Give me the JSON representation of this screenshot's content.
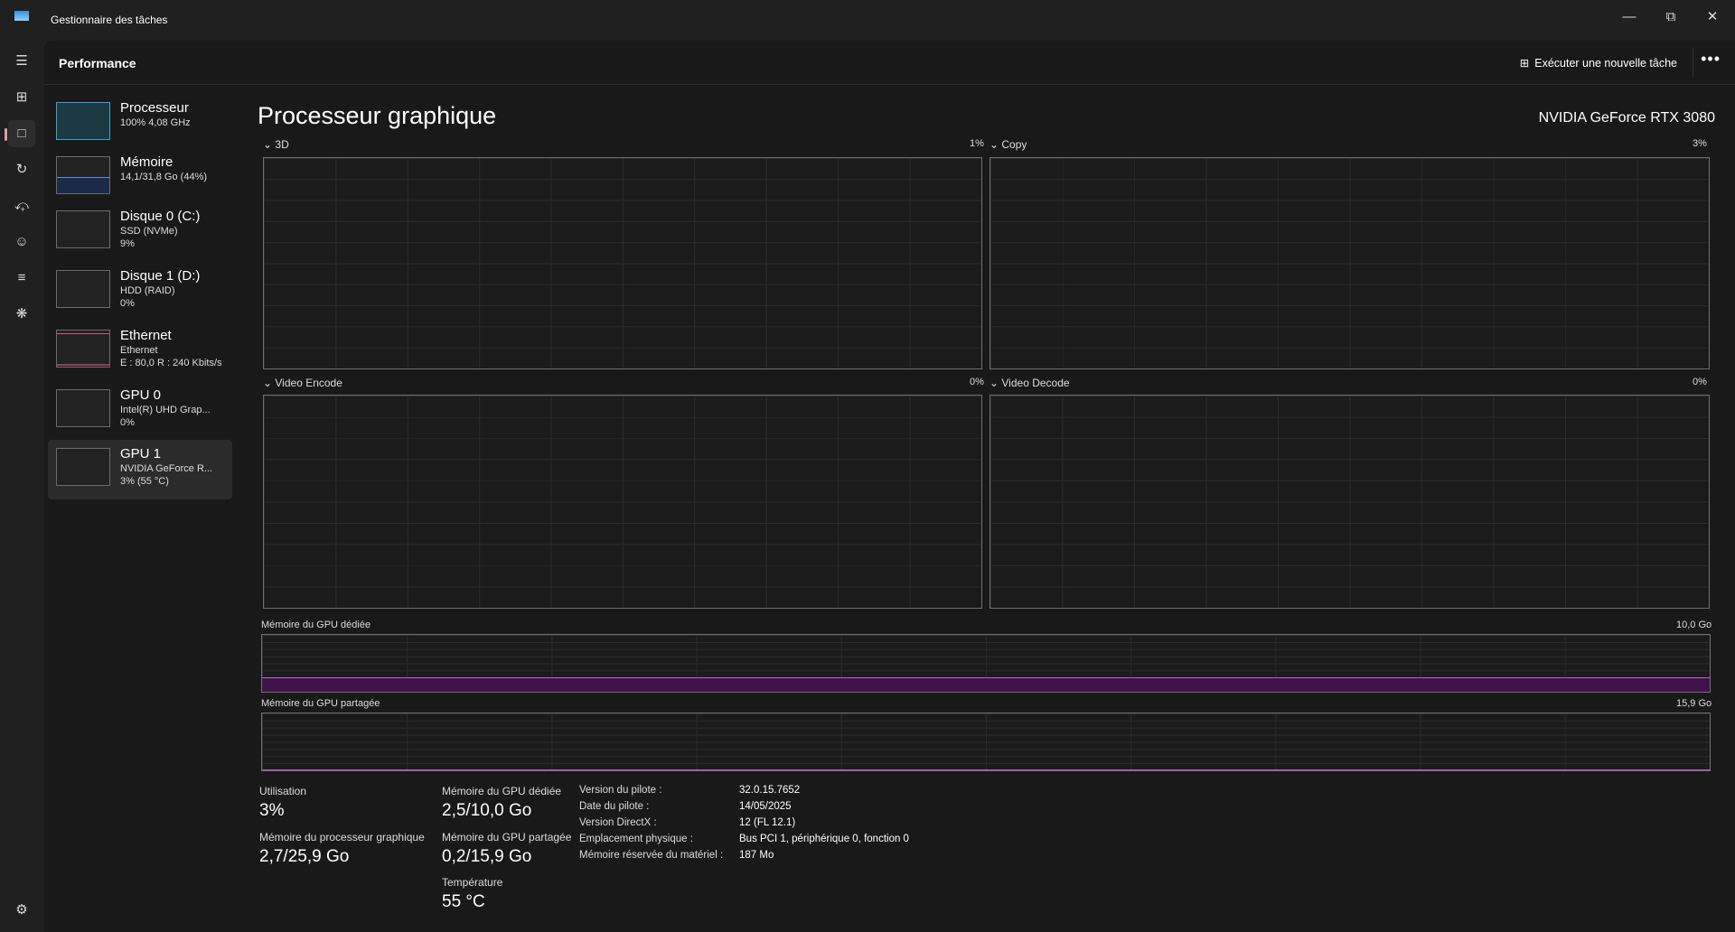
{
  "window": {
    "title": "Gestionnaire des tâches"
  },
  "header": {
    "title": "Performance",
    "run_task": "Exécuter une nouvelle tâche",
    "more": "•••"
  },
  "nav": [
    "menu-icon",
    "processes-icon",
    "performance-icon",
    "app-history-icon",
    "startup-icon",
    "users-icon",
    "details-icon",
    "services-icon",
    "settings-icon"
  ],
  "devices": [
    {
      "name": "Processeur",
      "line1": "100%  4,08 GHz",
      "line2": ""
    },
    {
      "name": "Mémoire",
      "line1": "14,1/31,8 Go (44%)",
      "line2": ""
    },
    {
      "name": "Disque 0 (C:)",
      "line1": "SSD (NVMe)",
      "line2": "9%"
    },
    {
      "name": "Disque 1 (D:)",
      "line1": "HDD (RAID)",
      "line2": "0%"
    },
    {
      "name": "Ethernet",
      "line1": "Ethernet",
      "line2": "E : 80,0 R : 240 Kbits/s"
    },
    {
      "name": "GPU 0",
      "line1": "Intel(R) UHD Grap...",
      "line2": "0%"
    },
    {
      "name": "GPU 1",
      "line1": "NVIDIA GeForce R...",
      "line2": "3%  (55 °C)"
    }
  ],
  "content": {
    "title": "Processeur graphique",
    "model": "NVIDIA GeForce RTX 3080",
    "engines": [
      {
        "name": "3D",
        "value": "1%"
      },
      {
        "name": "Copy",
        "value": "3%"
      },
      {
        "name": "Video Encode",
        "value": "0%"
      },
      {
        "name": "Video Decode",
        "value": "0%"
      }
    ],
    "dedicated": {
      "label": "Mémoire du GPU dédiée",
      "max": "10,0 Go",
      "fraction": 0.25
    },
    "shared": {
      "label": "Mémoire du GPU partagée",
      "max": "15,9 Go",
      "fraction": 0.013
    }
  },
  "stats": {
    "utilisation": {
      "label": "Utilisation",
      "value": "3%"
    },
    "gpu_mem": {
      "label": "Mémoire du processeur graphique",
      "value": "2,7/25,9 Go"
    },
    "dedicated": {
      "label": "Mémoire du GPU dédiée",
      "value": "2,5/10,0 Go"
    },
    "shared": {
      "label": "Mémoire du GPU partagée",
      "value": "0,2/15,9 Go"
    },
    "temp": {
      "label": "Température",
      "value": "55 °C"
    }
  },
  "info": [
    {
      "k": "Version du pilote :",
      "v": "32.0.15.7652"
    },
    {
      "k": "Date du pilote :",
      "v": "14/05/2025"
    },
    {
      "k": "Version DirectX :",
      "v": "12 (FL 12.1)"
    },
    {
      "k": "Emplacement physique :",
      "v": "Bus PCI 1, périphérique 0, fonction 0"
    },
    {
      "k": "Mémoire réservée du matériel :",
      "v": "187 Mo"
    }
  ],
  "colors": {
    "accent": "#c060d0",
    "cpu": "#3aa0d0",
    "memory": "#5a90e0",
    "ethernet": "#e0507a"
  }
}
